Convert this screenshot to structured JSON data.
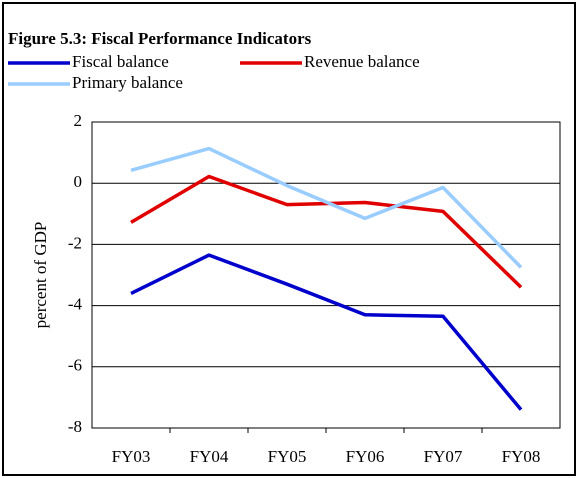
{
  "chart_data": {
    "type": "line",
    "title": "Figure 5.3: Fiscal Performance Indicators",
    "y_label": "percent of GDP",
    "categories": [
      "FY03",
      "FY04",
      "FY05",
      "FY06",
      "FY07",
      "FY08"
    ],
    "series": [
      {
        "name": "Fiscal balance",
        "color": "#0000cc",
        "values": [
          -3.6,
          -2.35,
          -3.3,
          -4.3,
          -4.35,
          -7.4
        ]
      },
      {
        "name": "Revenue balance",
        "color": "#e00000",
        "values": [
          -1.28,
          0.22,
          -0.7,
          -0.63,
          -0.92,
          -3.4
        ]
      },
      {
        "name": "Primary balance",
        "color": "#99ccff",
        "values": [
          0.42,
          1.13,
          -0.08,
          -1.15,
          -0.14,
          -2.75
        ]
      }
    ],
    "ylim": [
      -8,
      2
    ],
    "yticks": [
      -8,
      -6,
      -4,
      -2,
      0,
      2
    ],
    "grid": true
  }
}
